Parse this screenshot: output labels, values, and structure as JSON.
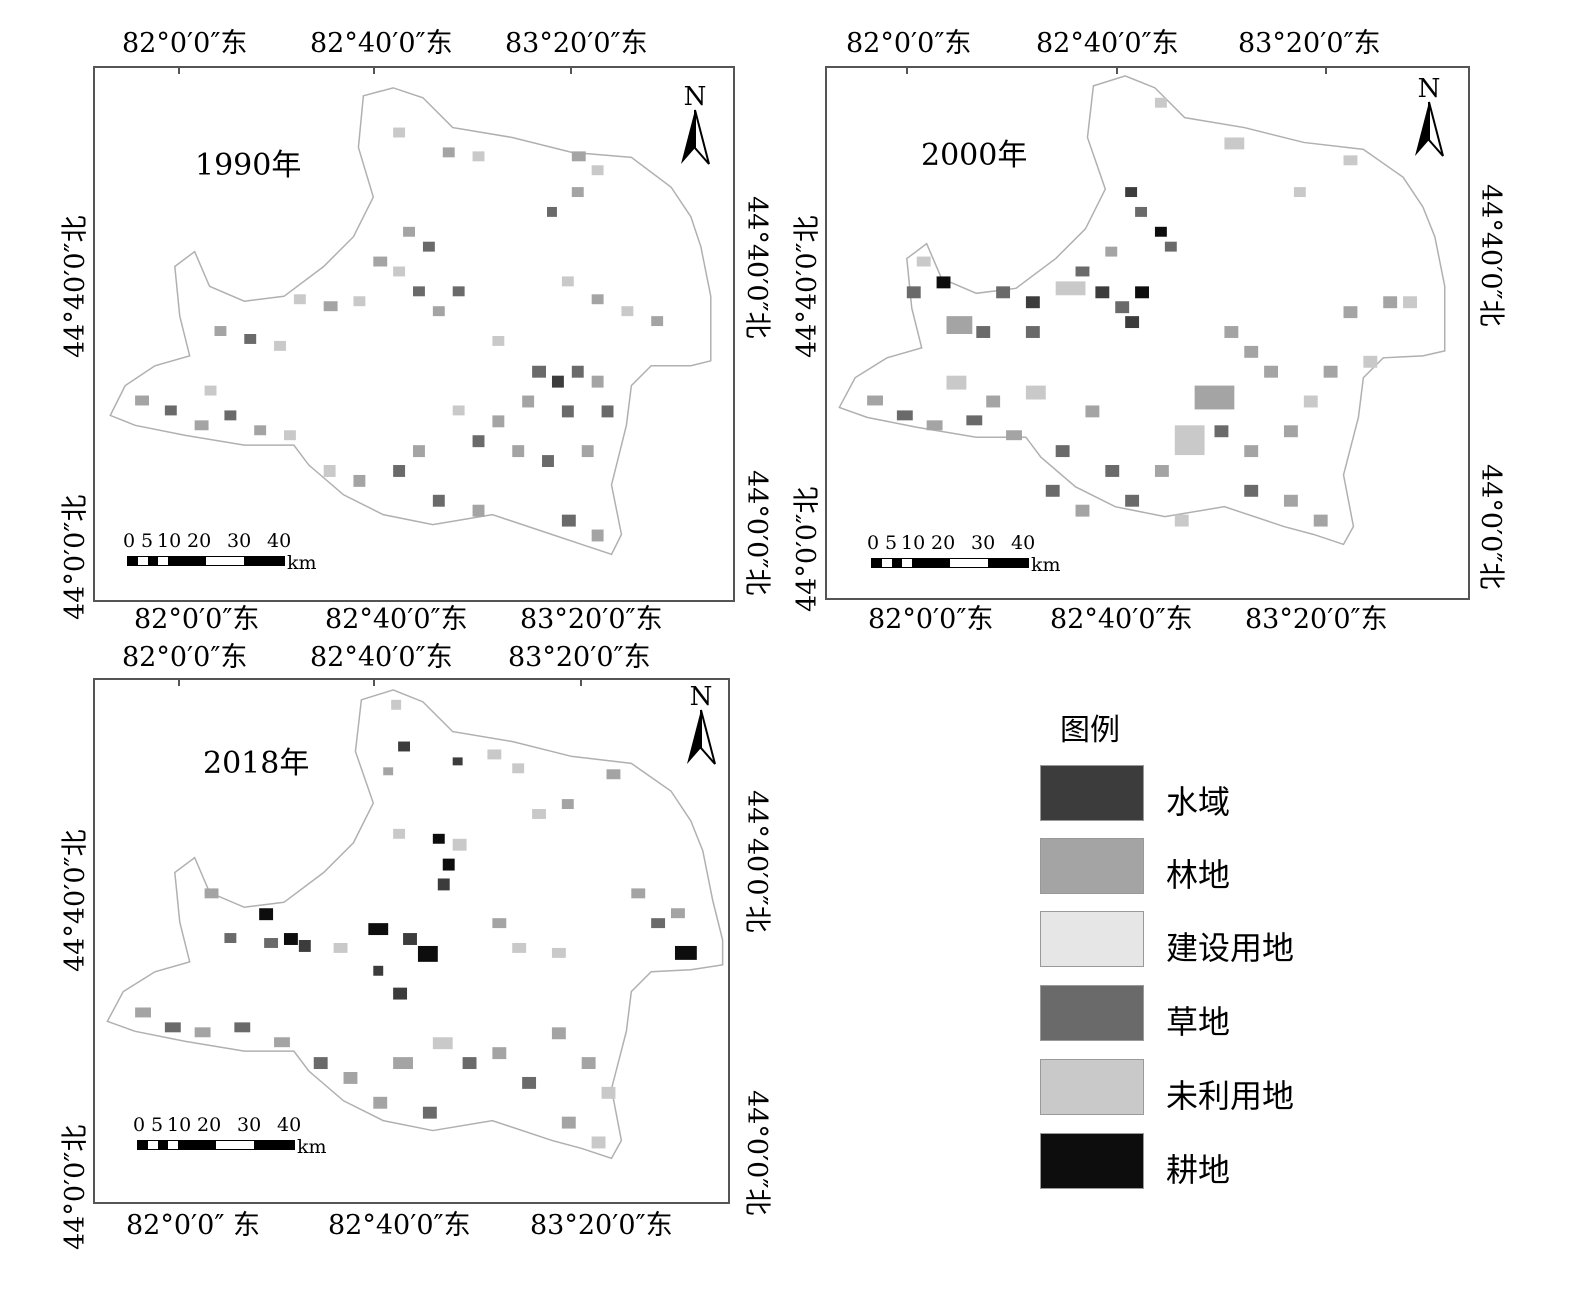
{
  "maps": [
    {
      "year_label": "1990年",
      "lon_top": [
        "82°0′0″东",
        "82°40′0″东",
        "83°20′0″东"
      ],
      "lon_bottom": [
        "82°0′0″东",
        "82°40′0″东",
        "83°20′0″东"
      ],
      "lat_left": [
        "44°40′0″北",
        "44°0′0″北"
      ],
      "lat_right": [
        "44°40′0″北",
        "44°0′0″北"
      ],
      "north": "N",
      "scale_ticks": [
        "0",
        "5",
        "10",
        "20",
        "30",
        "40"
      ],
      "scale_unit": "km"
    },
    {
      "year_label": "2000年",
      "lon_top": [
        "82°0′0″东",
        "82°40′0″东",
        "83°20′0″东"
      ],
      "lon_bottom": [
        "82°0′0″东",
        "82°40′0″东",
        "83°20′0″东"
      ],
      "lat_left": [
        "44°40′0″北",
        "44°0′0″北"
      ],
      "lat_right": [
        "44°40′0″北",
        "44°0′0″北"
      ],
      "north": "N",
      "scale_ticks": [
        "0",
        "5",
        "10",
        "20",
        "30",
        "40"
      ],
      "scale_unit": "km"
    },
    {
      "year_label": "2018年",
      "lon_top": [
        "82°0′0″东",
        "82°40′0″东",
        "83°20′0″东"
      ],
      "lon_bottom": [
        "82°0′0″ 东",
        "82°40′0″东",
        "83°20′0″东"
      ],
      "lat_left": [
        "44°40′0″北",
        "44°0′0″北"
      ],
      "lat_right": [
        "44°40′0″北",
        "44°0′0″北"
      ],
      "north": "N",
      "scale_ticks": [
        "0",
        "5",
        "10",
        "20",
        "30",
        "40"
      ],
      "scale_unit": "km"
    }
  ],
  "legend": {
    "title": "图例",
    "items": [
      {
        "label": "水域",
        "color": "#3c3c3c"
      },
      {
        "label": "林地",
        "color": "#a4a4a4"
      },
      {
        "label": "建设用地",
        "color": "#e6e6e6"
      },
      {
        "label": "草地",
        "color": "#6a6a6a"
      },
      {
        "label": "未利用地",
        "color": "#c9c9c9"
      },
      {
        "label": "耕地",
        "color": "#0d0d0d"
      }
    ]
  }
}
